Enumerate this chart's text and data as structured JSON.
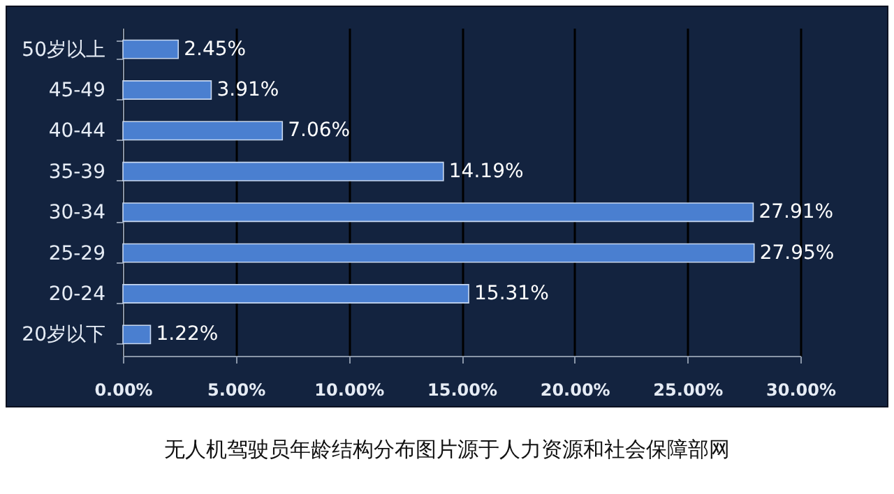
{
  "chart_data": {
    "type": "bar",
    "orientation": "horizontal",
    "categories": [
      "50岁以上",
      "45-49",
      "40-44",
      "35-39",
      "30-34",
      "25-29",
      "20-24",
      "20岁以下"
    ],
    "values": [
      2.45,
      3.91,
      7.06,
      14.19,
      27.91,
      27.95,
      15.31,
      1.22
    ],
    "value_labels": [
      "2.45%",
      "3.91%",
      "7.06%",
      "14.19%",
      "27.91%",
      "27.95%",
      "15.31%",
      "1.22%"
    ],
    "color": "#4a7fd0",
    "xlim": [
      0,
      30
    ],
    "xticks": [
      {
        "value": 0,
        "label": "0.00%"
      },
      {
        "value": 5,
        "label": "5.00%"
      },
      {
        "value": 10,
        "label": "10.00%"
      },
      {
        "value": 15,
        "label": "15.00%"
      },
      {
        "value": 20,
        "label": "20.00%"
      },
      {
        "value": 25,
        "label": "25.00%"
      },
      {
        "value": 30,
        "label": "30.00%"
      }
    ],
    "grid": "x",
    "annotations": [
      "无人机驾驶员年龄结构分布图片源于人力资源和社会保障部网"
    ]
  }
}
